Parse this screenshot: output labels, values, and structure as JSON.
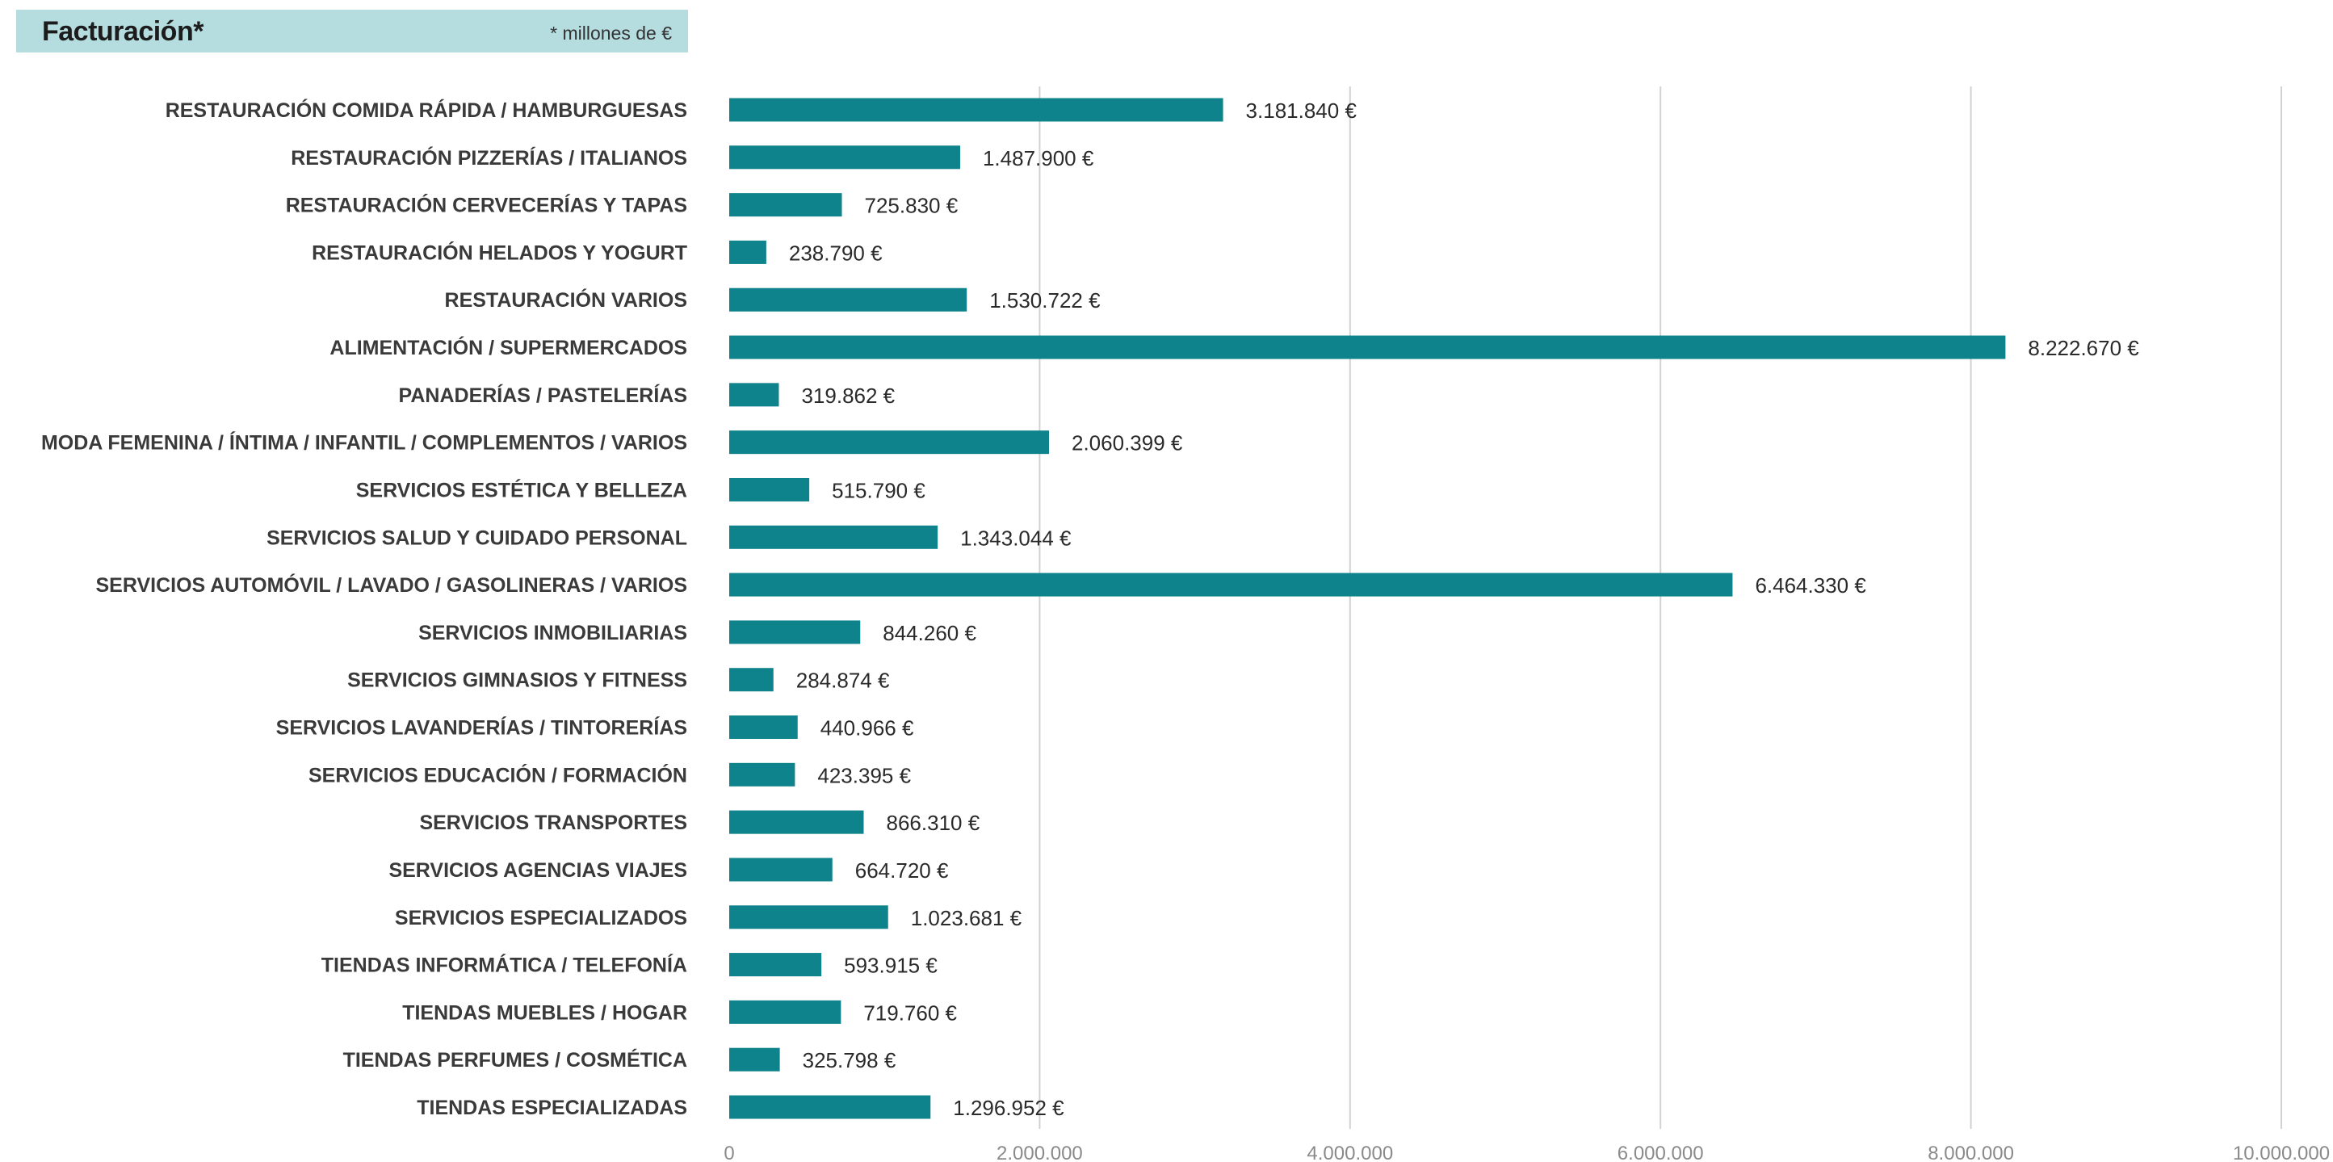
{
  "header": {
    "title": "Facturación",
    "title_mark": "*",
    "subtitle": "* millones de €"
  },
  "colors": {
    "bar": "#0e838b",
    "header_bg": "#b5dcdf",
    "grid": "#d2d2d2"
  },
  "chart_data": {
    "type": "bar",
    "orientation": "horizontal",
    "title": "Facturación*",
    "subtitle": "* millones de €",
    "xlim": [
      0,
      10000000
    ],
    "x_ticks": [
      0,
      2000000,
      4000000,
      6000000,
      8000000,
      10000000
    ],
    "x_tick_labels": [
      "0",
      "2.000.000",
      "4.000.000",
      "6.000.000",
      "8.000.000",
      "10.000.000"
    ],
    "grid": "vertical",
    "legend": "none",
    "categories": [
      "RESTAURACIÓN COMIDA RÁPIDA / HAMBURGUESAS",
      "RESTAURACIÓN PIZZERÍAS / ITALIANOS",
      "RESTAURACIÓN CERVECERÍAS Y TAPAS",
      "RESTAURACIÓN HELADOS Y YOGURT",
      "RESTAURACIÓN VARIOS",
      "ALIMENTACIÓN / SUPERMERCADOS",
      "PANADERÍAS / PASTELERÍAS",
      "MODA FEMENINA / ÍNTIMA / INFANTIL / COMPLEMENTOS / VARIOS",
      "SERVICIOS ESTÉTICA Y BELLEZA",
      "SERVICIOS SALUD Y CUIDADO PERSONAL",
      "SERVICIOS AUTOMÓVIL / LAVADO / GASOLINERAS / VARIOS",
      "SERVICIOS INMOBILIARIAS",
      "SERVICIOS GIMNASIOS Y FITNESS",
      "SERVICIOS LAVANDERÍAS  / TINTORERÍAS",
      "SERVICIOS EDUCACIÓN / FORMACIÓN",
      "SERVICIOS TRANSPORTES",
      "SERVICIOS AGENCIAS VIAJES",
      "SERVICIOS ESPECIALIZADOS",
      "TIENDAS INFORMÁTICA / TELEFONÍA",
      "TIENDAS MUEBLES / HOGAR",
      "TIENDAS PERFUMES / COSMÉTICA",
      "TIENDAS ESPECIALIZADAS"
    ],
    "values": [
      3181840,
      1487900,
      725830,
      238790,
      1530722,
      8222670,
      319862,
      2060399,
      515790,
      1343044,
      6464330,
      844260,
      284874,
      440966,
      423395,
      866310,
      664720,
      1023681,
      593915,
      719760,
      325798,
      1296952
    ],
    "value_labels": [
      "3.181.840 €",
      "1.487.900 €",
      "725.830 €",
      "238.790 €",
      "1.530.722 €",
      "8.222.670 €",
      "319.862 €",
      "2.060.399 €",
      "515.790 €",
      "1.343.044 €",
      "6.464.330 €",
      "844.260 €",
      "284.874 €",
      "440.966 €",
      "423.395 €",
      "866.310 €",
      "664.720 €",
      "1.023.681 €",
      "593.915 €",
      "719.760 €",
      "325.798 €",
      "1.296.952 €"
    ]
  }
}
